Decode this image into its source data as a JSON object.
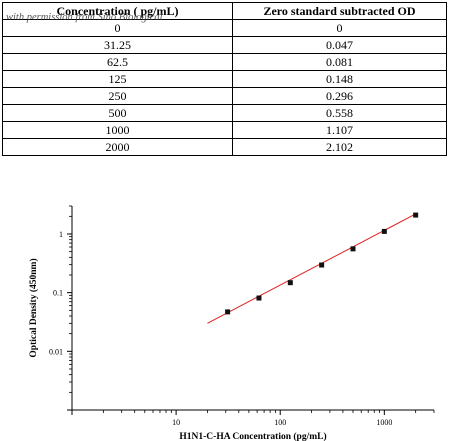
{
  "table": {
    "header": {
      "concentration": "Concentration ( pg/mL)",
      "od": "Zero standard subtracted OD",
      "watermark": "with permission from Sino Biological"
    },
    "rows": [
      [
        "0",
        "0"
      ],
      [
        "31.25",
        "0.047"
      ],
      [
        "62.5",
        "0.081"
      ],
      [
        "125",
        "0.148"
      ],
      [
        "250",
        "0.296"
      ],
      [
        "500",
        "0.558"
      ],
      [
        "1000",
        "1.107"
      ],
      [
        "2000",
        "2.102"
      ]
    ]
  },
  "chart_data": {
    "type": "scatter",
    "xlabel": "H1N1-C-HA Concentration (pg/mL)",
    "ylabel": "Optical Density (450nm)",
    "xscale": "log",
    "yscale": "log",
    "xlim": [
      1,
      3000
    ],
    "ylim": [
      0.001,
      3
    ],
    "xticks": [
      10,
      100,
      1000
    ],
    "xtick_labels": [
      "10",
      "100",
      "1000"
    ],
    "yticks": [
      0.01,
      0.1,
      1
    ],
    "ytick_labels": [
      "0.01",
      "0.1",
      "1"
    ],
    "grid": false,
    "x": [
      31.25,
      62.5,
      125,
      250,
      500,
      1000,
      2000
    ],
    "y": [
      0.047,
      0.081,
      0.148,
      0.296,
      0.558,
      1.107,
      2.102
    ],
    "fit_line": {
      "x": [
        20,
        2000
      ],
      "y": [
        0.03,
        2.2
      ]
    },
    "colors": {
      "fit_line": "#e02020",
      "points": "#111111"
    }
  }
}
